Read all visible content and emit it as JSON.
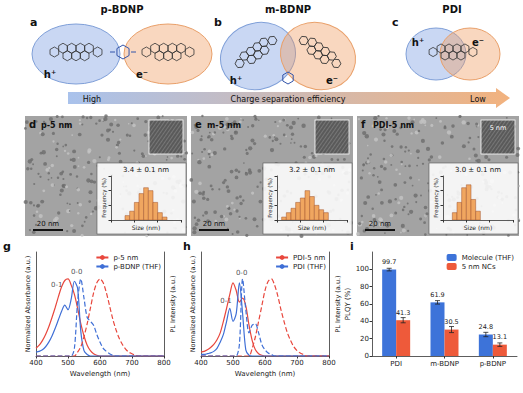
{
  "panels": {
    "a": {
      "letter": "a",
      "title": "p-BDNP",
      "hole": "h⁺",
      "electron": "e⁻"
    },
    "b": {
      "letter": "b",
      "title": "m-BDNP",
      "hole": "h⁺",
      "electron": "e⁻"
    },
    "c": {
      "letter": "c",
      "title": "PDI",
      "hole": "h⁺",
      "electron": "e⁻"
    },
    "arrow": {
      "left": "High",
      "middle": "Charge separation efficiency",
      "right": "Low"
    },
    "d": {
      "letter": "d",
      "label": "p-5 nm",
      "scale_bar": "20 nm"
    },
    "e": {
      "letter": "e",
      "label": "m-5 nm",
      "scale_bar": "20 nm"
    },
    "f": {
      "letter": "f",
      "label": "PDI-5 nm",
      "scale_bar": "20 nm",
      "inset_scale_bar": "5 nm"
    },
    "g": {
      "letter": "g"
    },
    "h": {
      "letter": "h"
    },
    "i": {
      "letter": "i"
    }
  },
  "chart_data": [
    {
      "type": "histogram",
      "title": "3.4 ± 0.1 nm",
      "x_label": "Size (nm)",
      "y_label": "Frequency (%)",
      "bins": [
        2.6,
        2.8,
        3.0,
        3.2,
        3.4,
        3.6,
        3.8,
        4.0,
        4.2,
        4.4
      ],
      "counts": [
        3,
        6,
        12,
        18,
        22,
        20,
        12,
        5,
        2
      ],
      "color": "#f0a660",
      "xlim": [
        2,
        5
      ],
      "xticks": [
        2,
        3,
        4,
        5
      ],
      "ylim": [
        0,
        30
      ],
      "yticks": [
        0,
        10,
        20,
        30
      ],
      "tick_labels": false
    },
    {
      "type": "histogram",
      "title": "3.2 ± 0.1 nm",
      "x_label": "Size (nm)",
      "y_label": "Frequency (%)",
      "bins": [
        2.2,
        2.4,
        2.6,
        2.8,
        3.0,
        3.2,
        3.4,
        3.6,
        3.8,
        4.0,
        4.2
      ],
      "counts": [
        2,
        5,
        8,
        12,
        15,
        20,
        16,
        10,
        7,
        5
      ],
      "color": "#f0a660",
      "xlim": [
        2,
        5
      ],
      "xticks": [
        2,
        3,
        4,
        5
      ],
      "ylim": [
        0,
        30
      ],
      "yticks": [
        0,
        10,
        20,
        30
      ],
      "tick_labels": false
    },
    {
      "type": "histogram",
      "title": "3.0 ± 0.1 nm",
      "x_label": "Size (nm)",
      "y_label": "Frequency (%)",
      "bins": [
        2.4,
        2.6,
        2.8,
        3.0,
        3.2,
        3.4,
        3.6
      ],
      "counts": [
        5,
        12,
        22,
        24,
        14,
        6
      ],
      "color": "#f0a660",
      "xlim": [
        2,
        5
      ],
      "xticks": [
        2,
        3,
        4,
        5
      ],
      "ylim": [
        0,
        30
      ],
      "yticks": [
        0,
        10,
        20,
        30
      ],
      "tick_labels": false
    },
    {
      "type": "line",
      "x_label": "Wavelength (nm)",
      "y_label": "Normalized Absorbance (a.u.)",
      "y2_label": "PL Intensity (a.u.)",
      "x": [
        400,
        410,
        420,
        430,
        440,
        450,
        460,
        470,
        480,
        490,
        500,
        510,
        520,
        530,
        540,
        550,
        560,
        570,
        580,
        590,
        600,
        610,
        620,
        630,
        640,
        650,
        660,
        670,
        680,
        690,
        700,
        710,
        720,
        730,
        740,
        750,
        760,
        770,
        780,
        790,
        800
      ],
      "series": [
        {
          "name": "p-5 nm",
          "color": "#e8473d",
          "line_style": "solid",
          "values": [
            0.1,
            0.14,
            0.2,
            0.28,
            0.38,
            0.5,
            0.63,
            0.77,
            0.9,
            0.98,
            1.0,
            0.92,
            0.8,
            0.62,
            0.42,
            0.26,
            0.14,
            0.07,
            0.03,
            0.01,
            0,
            0,
            0,
            0,
            0,
            0,
            0,
            0,
            0,
            0,
            0,
            0,
            0,
            0,
            0,
            0,
            0,
            0,
            0,
            0,
            0
          ]
        },
        {
          "name": "p-BDNP (THF)",
          "color": "#3f6fd6",
          "line_style": "solid",
          "values": [
            0.05,
            0.06,
            0.08,
            0.12,
            0.18,
            0.26,
            0.36,
            0.47,
            0.58,
            0.66,
            0.6,
            0.74,
            0.97,
            0.88,
            0.32,
            0.07,
            0.02,
            0,
            0,
            0,
            0,
            0,
            0,
            0,
            0,
            0,
            0,
            0,
            0,
            0,
            0,
            0,
            0,
            0,
            0,
            0,
            0,
            0,
            0,
            0,
            0
          ]
        },
        {
          "name": "p-5 nm",
          "color": "#e8473d",
          "line_style": "dashed",
          "axis": "y2",
          "values": [
            0,
            0,
            0,
            0,
            0,
            0,
            0,
            0,
            0,
            0,
            0,
            0,
            0,
            0.05,
            0.12,
            0.25,
            0.42,
            0.62,
            0.82,
            0.95,
            1.0,
            0.95,
            0.82,
            0.65,
            0.48,
            0.34,
            0.23,
            0.15,
            0.09,
            0.05,
            0.03,
            0.01,
            0,
            0,
            0,
            0,
            0,
            0,
            0,
            0,
            0
          ]
        },
        {
          "name": "p-BDNP (THF)",
          "color": "#3f6fd6",
          "line_style": "dashed",
          "axis": "y2",
          "values": [
            0,
            0,
            0,
            0,
            0,
            0,
            0,
            0,
            0,
            0,
            0,
            0,
            0.1,
            0.7,
            1.0,
            0.75,
            0.5,
            0.45,
            0.4,
            0.28,
            0.18,
            0.1,
            0.06,
            0.03,
            0.01,
            0,
            0,
            0,
            0,
            0,
            0,
            0,
            0,
            0,
            0,
            0,
            0,
            0,
            0,
            0,
            0
          ]
        }
      ],
      "xlim": [
        400,
        800
      ],
      "xticks": [
        400,
        500,
        600,
        700,
        800
      ],
      "ylim": [
        0,
        1.35
      ],
      "y2lim": [
        0,
        1.35
      ],
      "tick_labels": "x",
      "legend": "upper right",
      "annotations": [
        {
          "text": "0-1",
          "x": 465,
          "y": 0.92
        },
        {
          "text": "0-0",
          "x": 527,
          "y": 1.09
        }
      ]
    },
    {
      "type": "line",
      "x_label": "Wavelength (nm)",
      "y_label": "Normalized Absorbance (a.u.)",
      "y2_label": "PL Intensity (a.u.)",
      "x": [
        400,
        410,
        420,
        430,
        440,
        450,
        460,
        470,
        480,
        490,
        500,
        510,
        520,
        530,
        540,
        550,
        560,
        570,
        580,
        590,
        600,
        610,
        620,
        630,
        640,
        650,
        660,
        670,
        680,
        690,
        700,
        710,
        720,
        730,
        740,
        750,
        760,
        770,
        780,
        790,
        800
      ],
      "series": [
        {
          "name": "PDI-5 nm",
          "color": "#e8473d",
          "line_style": "solid",
          "values": [
            0.05,
            0.06,
            0.08,
            0.11,
            0.15,
            0.21,
            0.3,
            0.45,
            0.62,
            0.8,
            0.95,
            0.85,
            0.7,
            0.75,
            0.65,
            0.4,
            0.2,
            0.08,
            0.03,
            0.01,
            0,
            0,
            0,
            0,
            0,
            0,
            0,
            0,
            0,
            0,
            0,
            0,
            0,
            0,
            0,
            0,
            0,
            0,
            0,
            0,
            0
          ]
        },
        {
          "name": "PDI (THF)",
          "color": "#3f6fd6",
          "line_style": "solid",
          "values": [
            0.02,
            0.02,
            0.03,
            0.04,
            0.06,
            0.1,
            0.18,
            0.28,
            0.45,
            0.62,
            0.45,
            0.55,
            0.95,
            0.55,
            0.08,
            0.01,
            0,
            0,
            0,
            0,
            0,
            0,
            0,
            0,
            0,
            0,
            0,
            0,
            0,
            0,
            0,
            0,
            0,
            0,
            0,
            0,
            0,
            0,
            0,
            0,
            0
          ]
        },
        {
          "name": "PDI-5 nm",
          "color": "#e8473d",
          "line_style": "dashed",
          "axis": "y2",
          "values": [
            0,
            0,
            0,
            0,
            0,
            0,
            0,
            0,
            0,
            0,
            0,
            0,
            0,
            0,
            0,
            0,
            0.1,
            0.25,
            0.45,
            0.65,
            0.85,
            0.97,
            1.0,
            0.92,
            0.78,
            0.6,
            0.44,
            0.3,
            0.2,
            0.12,
            0.07,
            0.04,
            0.02,
            0,
            0,
            0,
            0,
            0,
            0,
            0,
            0
          ]
        },
        {
          "name": "PDI (THF)",
          "color": "#3f6fd6",
          "line_style": "dashed",
          "axis": "y2",
          "values": [
            0,
            0,
            0,
            0,
            0,
            0,
            0,
            0,
            0,
            0,
            0,
            0,
            0.15,
            1.0,
            0.6,
            0.3,
            0.4,
            0.42,
            0.3,
            0.15,
            0.08,
            0.04,
            0.02,
            0,
            0,
            0,
            0,
            0,
            0,
            0,
            0,
            0,
            0,
            0,
            0,
            0,
            0,
            0,
            0,
            0,
            0
          ]
        }
      ],
      "xlim": [
        400,
        800
      ],
      "xticks": [
        400,
        500,
        600,
        700,
        800
      ],
      "ylim": [
        0,
        1.35
      ],
      "y2lim": [
        0,
        1.35
      ],
      "tick_labels": "x",
      "legend": "upper right",
      "annotations": [
        {
          "text": "0-1",
          "x": 478,
          "y": 0.72
        },
        {
          "text": "0-0",
          "x": 527,
          "y": 1.08
        }
      ]
    },
    {
      "type": "bar",
      "y_label": "PLQY (%)",
      "categories": [
        "PDI",
        "m-BDNP",
        "p-BDNP"
      ],
      "series": [
        {
          "name": "Molecule (THF)",
          "color": "#3d73d9",
          "values": [
            99.7,
            61.9,
            24.8
          ],
          "errors": [
            1.5,
            2.0,
            2.5
          ]
        },
        {
          "name": "5 nm NCs",
          "color": "#ee5a3a",
          "values": [
            41.3,
            30.5,
            13.1
          ],
          "errors": [
            3.0,
            3.5,
            2.0
          ]
        }
      ],
      "ylim": [
        0,
        120
      ],
      "yticks": [
        0,
        20,
        40,
        60,
        80,
        100
      ],
      "data_labels": true,
      "legend": "upper right",
      "grid": false
    }
  ]
}
